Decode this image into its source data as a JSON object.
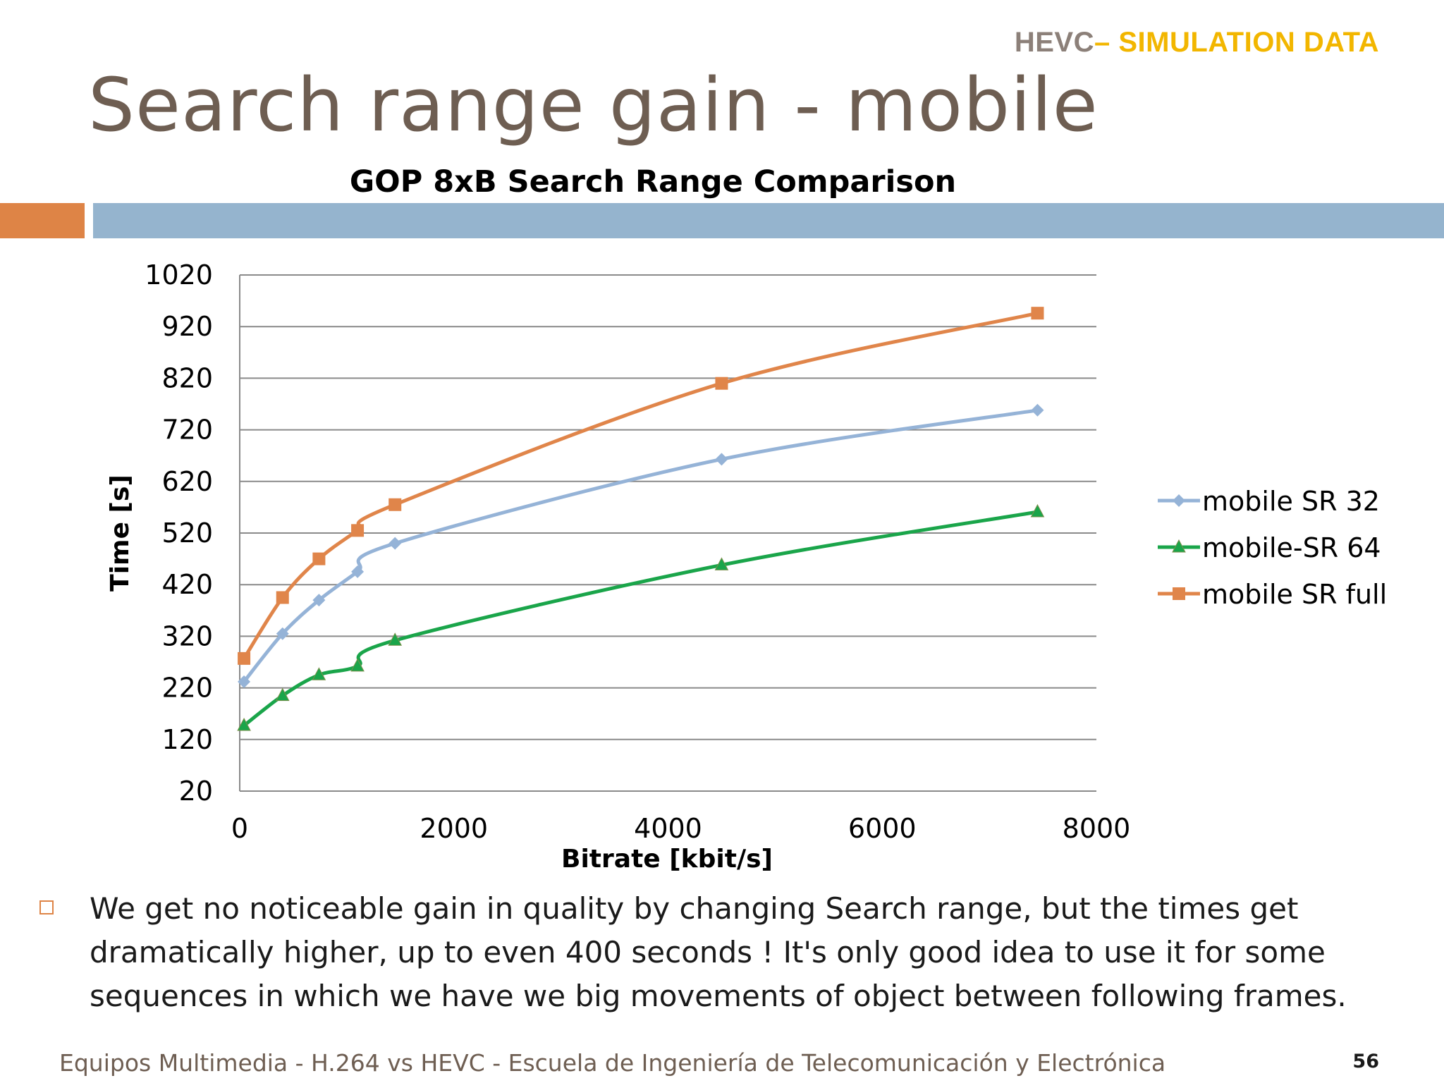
{
  "slide": {
    "header_tag_prefix": "HEVC",
    "header_tag_suffix": "– SIMULATION DATA",
    "title": "Search range gain - mobile",
    "bullet_text": "We get no noticeable gain in quality by changing Search range, but the times get dramatically higher, up to even 400 seconds ! It's only good idea to use it for some sequences in which we have we big movements of object between following frames.",
    "footer": "Equipos Multimedia - H.264 vs HEVC - Escuela de Ingeniería de Telecomunicación y Electrónica",
    "page_number": "56"
  },
  "colors": {
    "title_text": "#6e5e52",
    "header_gold": "#f2b600",
    "header_gray": "#8c8079",
    "accent_orange": "#de8446",
    "accent_blue": "#95b4ce"
  },
  "chart_data": {
    "type": "line",
    "title": "GOP 8xB Search Range Comparison",
    "xlabel": "Bitrate [kbit/s]",
    "ylabel": "Time [s]",
    "xlim": [
      0,
      8000
    ],
    "ylim": [
      20,
      1020
    ],
    "xticks": [
      0,
      2000,
      4000,
      6000,
      8000
    ],
    "yticks": [
      20,
      120,
      220,
      320,
      420,
      520,
      620,
      720,
      820,
      920,
      1020
    ],
    "grid": "horizontal",
    "legend_position": "right",
    "smooth": true,
    "series": [
      {
        "name": "mobile SR 32",
        "color": "#95b3d7",
        "marker": "diamond",
        "x": [
          40,
          400,
          740,
          1100,
          1450,
          4500,
          7450
        ],
        "y": [
          232,
          325,
          390,
          445,
          500,
          663,
          758
        ]
      },
      {
        "name": "mobile-SR 64",
        "color": "#1aa54a",
        "marker": "triangle",
        "x": [
          40,
          400,
          740,
          1100,
          1450,
          4500,
          7450
        ],
        "y": [
          147,
          205,
          245,
          262,
          312,
          458,
          561
        ]
      },
      {
        "name": "mobile SR full",
        "color": "#e0854a",
        "marker": "square",
        "x": [
          40,
          400,
          740,
          1100,
          1450,
          4500,
          7450
        ],
        "y": [
          277,
          395,
          470,
          525,
          575,
          810,
          946
        ]
      }
    ]
  }
}
